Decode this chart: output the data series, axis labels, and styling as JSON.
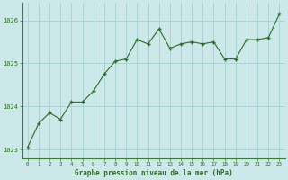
{
  "x": [
    0,
    1,
    2,
    3,
    4,
    5,
    6,
    7,
    8,
    9,
    10,
    11,
    12,
    13,
    14,
    15,
    16,
    17,
    18,
    19,
    20,
    21,
    22,
    23
  ],
  "y": [
    1023.05,
    1023.6,
    1023.85,
    1023.7,
    1024.1,
    1024.1,
    1024.35,
    1024.75,
    1025.05,
    1025.1,
    1025.55,
    1025.45,
    1025.8,
    1025.35,
    1025.45,
    1025.5,
    1025.45,
    1025.5,
    1025.1,
    1025.1,
    1025.55,
    1025.55,
    1025.6,
    1026.15
  ],
  "line_color": "#2d6a2d",
  "marker_color": "#2d6a2d",
  "bg_color": "#cce8e8",
  "grid_color": "#aad4d4",
  "xlabel": "Graphe pression niveau de la mer (hPa)",
  "xlabel_color": "#2d6a2d",
  "tick_color": "#2d6a2d",
  "border_color": "#3a7a3a",
  "ylim": [
    1022.8,
    1026.4
  ],
  "yticks": [
    1023,
    1024,
    1025,
    1026
  ],
  "xticks": [
    0,
    1,
    2,
    3,
    4,
    5,
    6,
    7,
    8,
    9,
    10,
    11,
    12,
    13,
    14,
    15,
    16,
    17,
    18,
    19,
    20,
    21,
    22,
    23
  ]
}
